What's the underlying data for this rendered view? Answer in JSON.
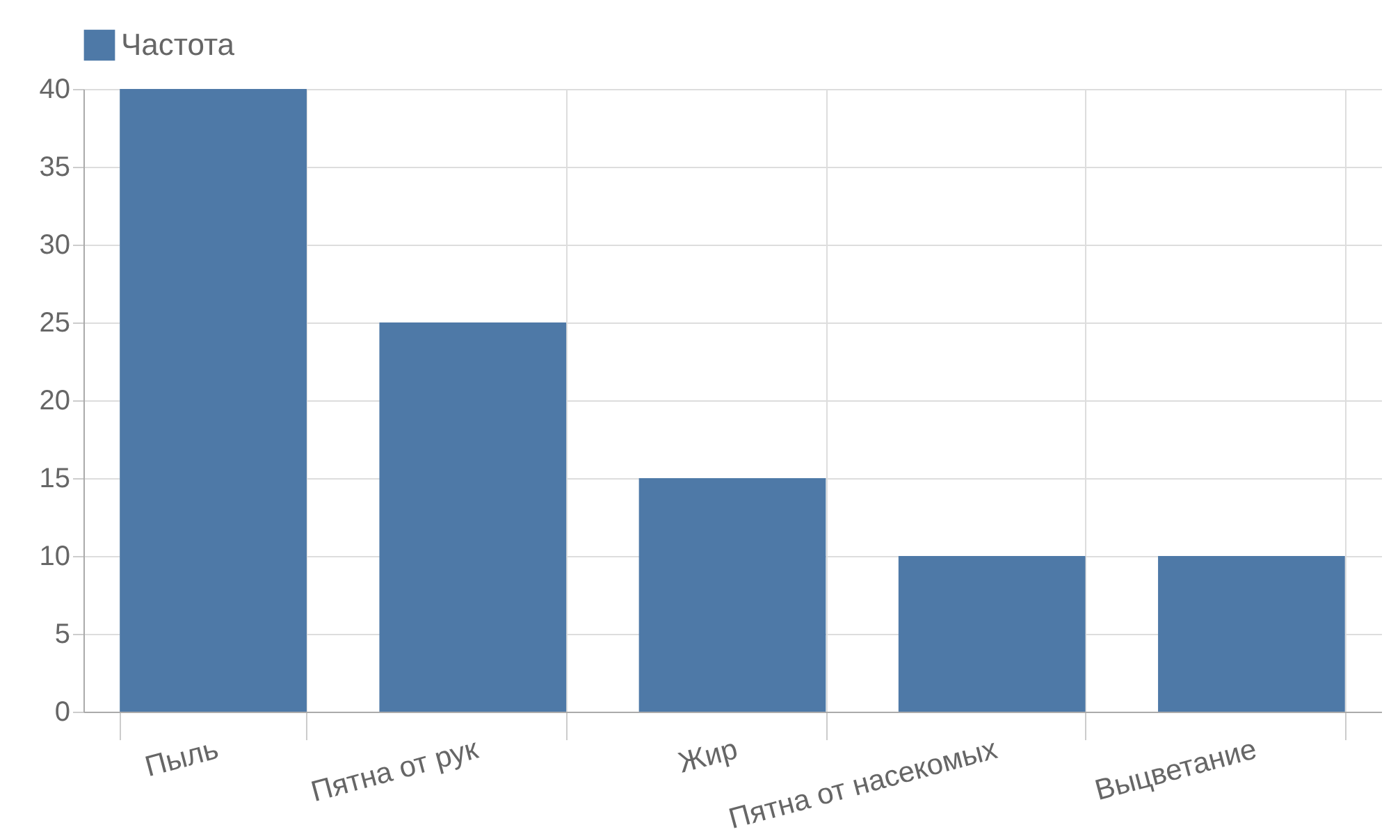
{
  "chart_data": {
    "type": "bar",
    "categories": [
      "Пыль",
      "Пятна от рук",
      "Жир",
      "Пятна от насекомых",
      "Выцветание"
    ],
    "series": [
      {
        "name": "Частота",
        "color": "#4e79a7",
        "values": [
          40,
          25,
          15,
          10,
          10
        ]
      }
    ],
    "ylim": [
      0,
      40
    ],
    "yticks": [
      0,
      5,
      10,
      15,
      20,
      25,
      30,
      35,
      40
    ],
    "grid": true,
    "legend": "top"
  }
}
